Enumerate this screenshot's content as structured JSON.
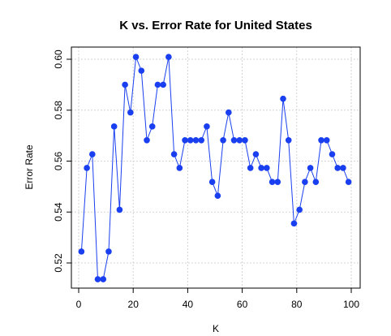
{
  "chart_data": {
    "type": "line",
    "title": "K vs. Error Rate for United States",
    "xlabel": "K",
    "ylabel": "Error Rate",
    "xlim": [
      0,
      100
    ],
    "ylim": [
      0.51,
      0.605
    ],
    "xticks": [
      0,
      20,
      40,
      60,
      80,
      100
    ],
    "yticks": [
      0.52,
      0.54,
      0.56,
      0.58,
      0.6
    ],
    "xtick_labels": [
      "0",
      "20",
      "40",
      "60",
      "80",
      "100"
    ],
    "ytick_labels": [
      "0.52",
      "0.54",
      "0.56",
      "0.58",
      "0.60"
    ],
    "grid": true,
    "colors": {
      "series": "#1a3ff0",
      "grid": "#d3d3d3"
    },
    "series": [
      {
        "x": [
          1,
          3,
          5,
          7,
          9,
          11,
          13,
          15,
          17,
          19,
          21,
          23,
          25,
          27,
          29,
          31,
          33,
          35,
          37,
          39,
          41,
          43,
          45,
          47,
          49,
          51,
          53,
          55,
          57,
          59,
          61,
          63,
          65,
          67,
          69,
          71,
          73,
          75,
          77,
          79,
          81,
          83,
          85,
          87,
          89,
          91,
          93,
          95,
          97,
          99
        ],
        "values": [
          0.5245,
          0.5573,
          0.5627,
          0.5136,
          0.5136,
          0.5245,
          0.5736,
          0.5409,
          0.59,
          0.5791,
          0.6009,
          0.5955,
          0.5682,
          0.5736,
          0.59,
          0.59,
          0.6009,
          0.5627,
          0.5573,
          0.5682,
          0.5682,
          0.5682,
          0.5682,
          0.5736,
          0.5518,
          0.5464,
          0.5682,
          0.5791,
          0.5682,
          0.5682,
          0.5682,
          0.5573,
          0.5627,
          0.5573,
          0.5573,
          0.5518,
          0.5518,
          0.5845,
          0.5682,
          0.5355,
          0.5409,
          0.5518,
          0.5573,
          0.5518,
          0.5682,
          0.5682,
          0.5627,
          0.5573,
          0.5573,
          0.5518
        ]
      }
    ]
  }
}
